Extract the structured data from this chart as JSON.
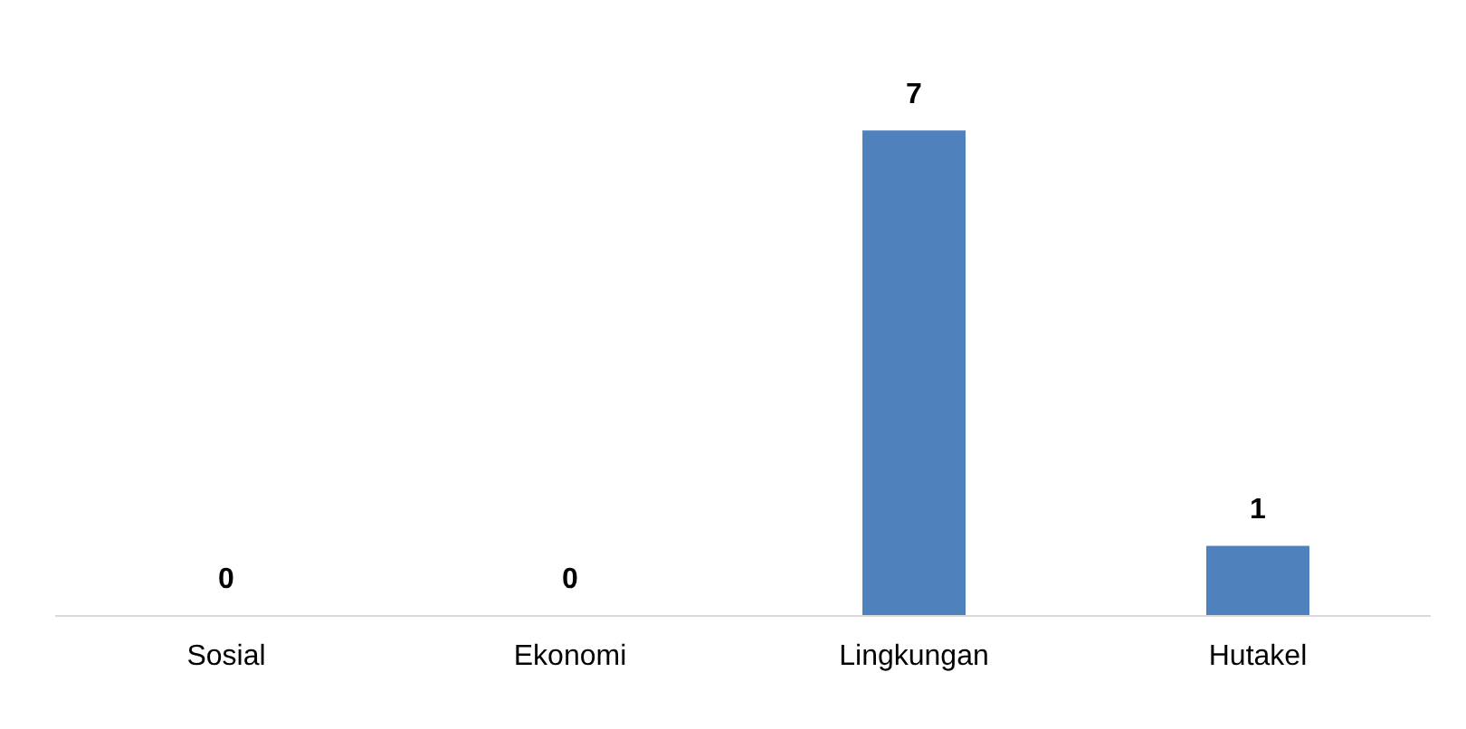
{
  "chart_data": {
    "type": "bar",
    "categories": [
      "Sosial",
      "Ekonomi",
      "Lingkungan",
      "Hutakel"
    ],
    "values": [
      0,
      0,
      7,
      1
    ],
    "color": "#4f81bd",
    "data_labels": true
  }
}
